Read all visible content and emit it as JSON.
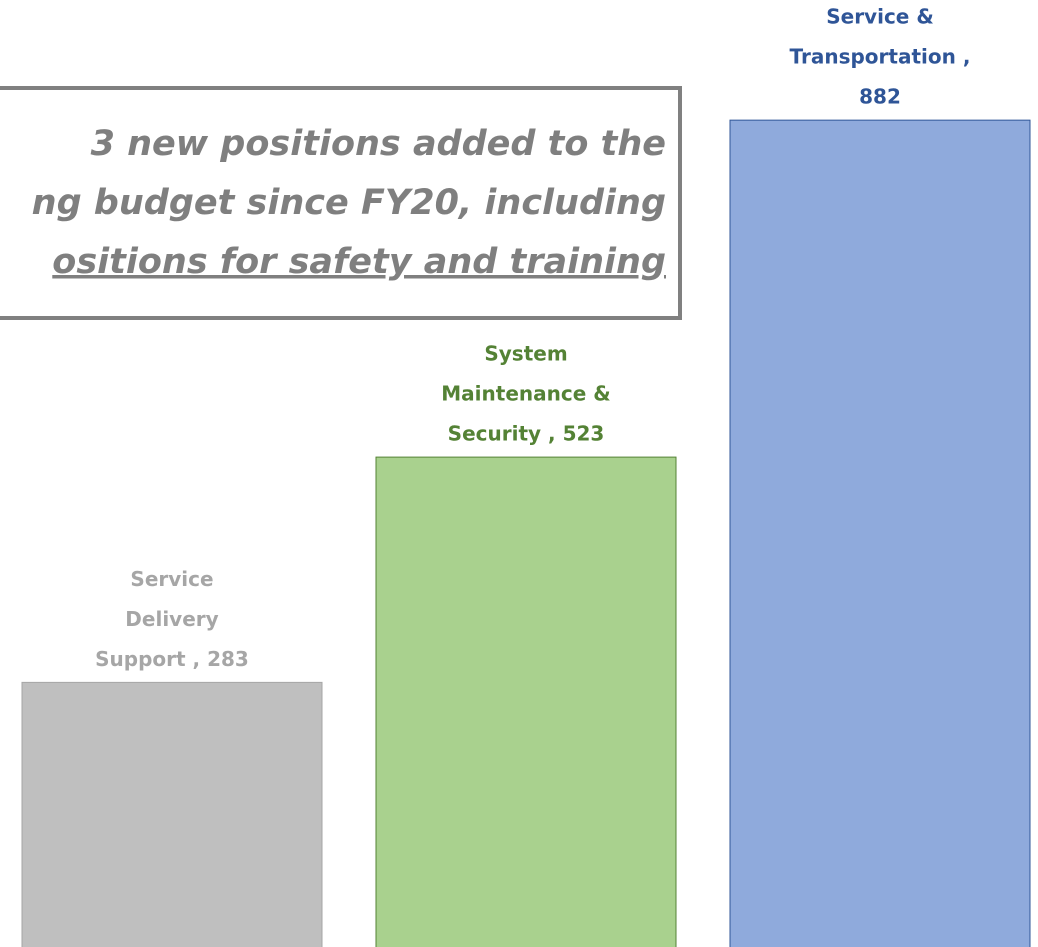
{
  "chart_data": {
    "type": "bar",
    "values": [
      283,
      523,
      882
    ],
    "value_labels": [
      [
        "Service",
        "Delivery",
        "Support , 283"
      ],
      [
        "System",
        "Maintenance &",
        "Security , 523"
      ],
      [
        "Service &",
        "Transportation ,",
        "882"
      ]
    ],
    "colors": [
      "#bfbfbf",
      "#a9d18e",
      "#8faadc"
    ],
    "label_colors": [
      "#a6a6a6",
      "#548235",
      "#2f5597"
    ],
    "ylim": [
      0,
      1010
    ],
    "annotation": [
      "3 new positions added to the",
      "ng budget since FY20, including",
      "ositions for safety and training"
    ]
  }
}
